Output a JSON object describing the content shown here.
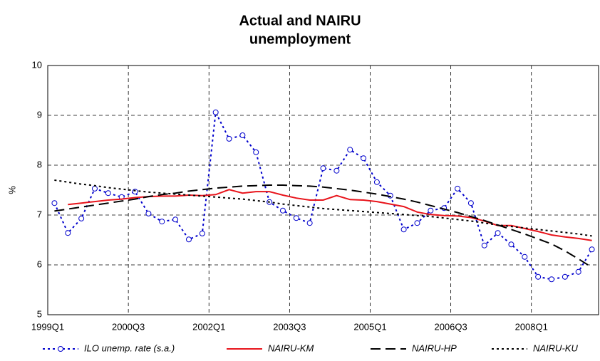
{
  "chart_data": {
    "type": "line",
    "title": [
      "Actual and NAIRU",
      "unemployment"
    ],
    "y_label": "%",
    "categories": [
      "1999Q1",
      null,
      null,
      null,
      null,
      null,
      "2000Q3",
      null,
      null,
      null,
      null,
      null,
      "2002Q1",
      null,
      null,
      null,
      null,
      null,
      "2003Q3",
      null,
      null,
      null,
      null,
      null,
      "2005Q1",
      null,
      null,
      null,
      null,
      null,
      "2006Q3",
      null,
      null,
      null,
      null,
      null,
      "2008Q1",
      null,
      null,
      null,
      null
    ],
    "series": [
      {
        "name": "ILO unemp. rate (s.a.)",
        "color": "#0000cc",
        "style": "dotted-markers",
        "values": [
          7.24,
          6.64,
          6.93,
          7.53,
          7.44,
          7.36,
          7.47,
          7.03,
          6.87,
          6.91,
          6.51,
          6.63,
          9.06,
          8.53,
          8.6,
          8.26,
          7.26,
          7.09,
          6.94,
          6.84,
          7.94,
          7.89,
          8.31,
          8.14,
          7.66,
          7.39,
          6.71,
          6.84,
          7.09,
          7.14,
          7.53,
          7.24,
          6.39,
          6.64,
          6.41,
          6.16,
          5.76,
          5.71,
          5.76,
          5.86,
          6.31
        ]
      },
      {
        "name": "NAIRU-KM",
        "color": "#e8141b",
        "style": "solid",
        "values": [
          null,
          7.21,
          7.24,
          7.27,
          7.3,
          7.32,
          7.35,
          7.37,
          7.38,
          7.38,
          7.4,
          7.39,
          7.41,
          7.51,
          7.44,
          7.47,
          7.47,
          7.4,
          7.34,
          7.3,
          7.3,
          7.39,
          7.31,
          7.3,
          7.27,
          7.22,
          7.17,
          7.06,
          7.01,
          6.99,
          6.98,
          6.95,
          6.88,
          6.79,
          6.79,
          6.73,
          6.67,
          6.6,
          6.56,
          6.53,
          6.49
        ]
      },
      {
        "name": "NAIRU-HP",
        "color": "#000000",
        "style": "dashed",
        "values": [
          7.08,
          7.12,
          7.16,
          7.2,
          7.24,
          7.28,
          7.32,
          7.37,
          7.41,
          7.44,
          7.48,
          7.51,
          7.54,
          7.56,
          7.58,
          7.59,
          7.6,
          7.6,
          7.59,
          7.58,
          7.56,
          7.53,
          7.5,
          7.46,
          7.42,
          7.37,
          7.32,
          7.26,
          7.19,
          7.12,
          7.05,
          6.97,
          6.89,
          6.8,
          6.71,
          6.62,
          6.52,
          6.42,
          6.28,
          6.12,
          5.95
        ]
      },
      {
        "name": "NAIRU-KU",
        "color": "#000000",
        "style": "dotted",
        "values": [
          7.7,
          7.66,
          7.62,
          7.59,
          7.55,
          7.52,
          7.49,
          7.46,
          7.44,
          7.42,
          7.4,
          7.38,
          7.36,
          7.34,
          7.32,
          7.29,
          7.26,
          7.22,
          7.19,
          7.16,
          7.13,
          7.11,
          7.09,
          7.07,
          7.05,
          7.03,
          7.01,
          6.99,
          6.97,
          6.94,
          6.91,
          6.88,
          6.84,
          6.8,
          6.77,
          6.74,
          6.71,
          6.68,
          6.65,
          6.62,
          6.58
        ]
      }
    ],
    "ylim": [
      5,
      10
    ],
    "yticks": [
      5,
      6,
      7,
      8,
      9,
      10
    ],
    "grid": true
  }
}
